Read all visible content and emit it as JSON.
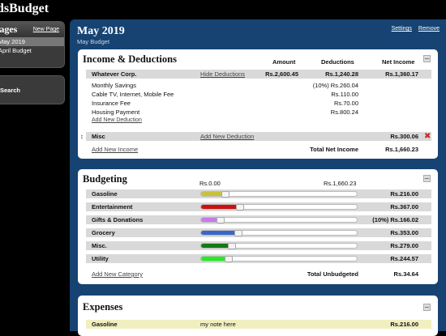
{
  "app": {
    "title": "dsBudget"
  },
  "sidebar": {
    "pages_title": "Pages",
    "new_page": "New Page",
    "pages": [
      {
        "label": "May 2019",
        "active": true
      },
      {
        "label": "April Budget",
        "active": false
      }
    ],
    "search_label": "Search"
  },
  "main": {
    "title": "May 2019",
    "subtitle": "May Budget",
    "settings": "Settings",
    "remove": "Remove"
  },
  "income": {
    "title": "Income & Deductions",
    "col_amount": "Amount",
    "col_deductions": "Deductions",
    "col_net": "Net Income",
    "source": {
      "name": "Whatever Corp.",
      "hide_link": "Hide Deductions",
      "amount": "Rs.2,600.45",
      "deductions": "Rs.1,240.28",
      "net": "Rs.1,360.17"
    },
    "deductions": [
      {
        "name": "Monthly Savings",
        "value": "(10%) Rs.260.04"
      },
      {
        "name": "Cable TV, Internet, Mobile Fee",
        "value": "Rs.110.00"
      },
      {
        "name": "Insurance Fee",
        "value": "Rs.70.00"
      },
      {
        "name": "Housing Payment",
        "value": "Rs.800.24"
      }
    ],
    "add_deduction": "Add New Deduction",
    "misc": {
      "name": "Misc",
      "add_link": "Add New Deduction",
      "net": "Rs.300.06"
    },
    "add_income": "Add New Income",
    "total_label": "Total Net Income",
    "total_value": "Rs.1,660.23"
  },
  "budgeting": {
    "title": "Budgeting",
    "scale_min": "Rs.0.00",
    "scale_max": "Rs.1,660.23",
    "categories": [
      {
        "name": "Gasoline",
        "value": "Rs.216.00",
        "color": "#c8c23a",
        "fraction": 0.13
      },
      {
        "name": "Entertainment",
        "value": "Rs.367.00",
        "color": "#cc1111",
        "fraction": 0.221
      },
      {
        "name": "Gifts & Donations",
        "value": "(10%) Rs.166.02",
        "color": "#c77be8",
        "fraction": 0.1
      },
      {
        "name": "Grocery",
        "value": "Rs.353.00",
        "color": "#3a66c8",
        "fraction": 0.213
      },
      {
        "name": "Misc.",
        "value": "Rs.279.00",
        "color": "#127a12",
        "fraction": 0.168
      },
      {
        "name": "Utility",
        "value": "Rs.244.57",
        "color": "#22ee22",
        "fraction": 0.147
      }
    ],
    "add_category": "Add New Category",
    "total_label": "Total Unbudgeted",
    "total_value": "Rs.34.64"
  },
  "expenses": {
    "title": "Expenses",
    "row": {
      "name": "Gasoline",
      "note": "my note here",
      "value": "Rs.216.00"
    }
  }
}
